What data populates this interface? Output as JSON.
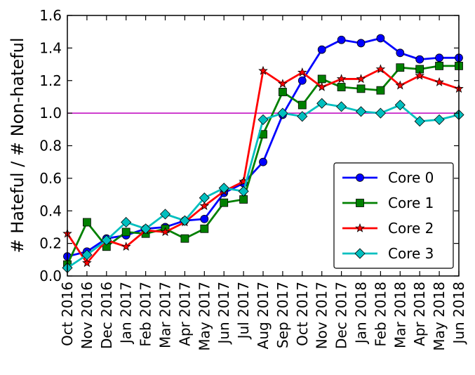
{
  "chart_data": {
    "type": "line",
    "ylabel": "# Hateful / # Non-hateful",
    "xlabel": "",
    "ylim": [
      0.0,
      1.6
    ],
    "yticks": [
      "0.0",
      "0.2",
      "0.4",
      "0.6",
      "0.8",
      "1.0",
      "1.2",
      "1.4",
      "1.6"
    ],
    "categories": [
      "Oct 2016",
      "Nov 2016",
      "Dec 2016",
      "Jan 2017",
      "Feb 2017",
      "Mar 2017",
      "Apr 2017",
      "May 2017",
      "Jun 2017",
      "Jul 2017",
      "Aug 2017",
      "Sep 2017",
      "Oct 2017",
      "Nov 2017",
      "Dec 2017",
      "Jan 2018",
      "Feb 2018",
      "Mar 2018",
      "Apr 2018",
      "May 2018",
      "Jun 2018"
    ],
    "reference_line": {
      "y": 1.0,
      "color": "#bf00bf"
    },
    "grid": false,
    "legend_position": "lower-right",
    "series": [
      {
        "name": "Core 0",
        "color": "#0000ff",
        "marker": "circle",
        "values": [
          0.12,
          0.15,
          0.23,
          0.25,
          0.29,
          0.3,
          0.34,
          0.35,
          0.51,
          0.57,
          0.7,
          0.99,
          1.2,
          1.39,
          1.45,
          1.43,
          1.46,
          1.37,
          1.33,
          1.34,
          1.34
        ]
      },
      {
        "name": "Core 1",
        "color": "#008000",
        "marker": "square",
        "values": [
          0.07,
          0.33,
          0.18,
          0.27,
          0.26,
          0.29,
          0.23,
          0.29,
          0.45,
          0.47,
          0.87,
          1.13,
          1.05,
          1.21,
          1.16,
          1.15,
          1.14,
          1.28,
          1.27,
          1.29,
          1.29
        ]
      },
      {
        "name": "Core 2",
        "color": "#ff0000",
        "marker": "star",
        "values": [
          0.26,
          0.08,
          0.22,
          0.18,
          0.28,
          0.27,
          0.33,
          0.43,
          0.52,
          0.58,
          1.26,
          1.18,
          1.25,
          1.16,
          1.21,
          1.21,
          1.27,
          1.17,
          1.23,
          1.19,
          1.15
        ]
      },
      {
        "name": "Core 3",
        "color": "#00bfbf",
        "marker": "diamond",
        "values": [
          0.05,
          0.13,
          0.22,
          0.33,
          0.29,
          0.38,
          0.34,
          0.48,
          0.54,
          0.52,
          0.96,
          1.0,
          0.98,
          1.06,
          1.04,
          1.01,
          1.0,
          1.05,
          0.95,
          0.96,
          0.99
        ]
      }
    ]
  }
}
